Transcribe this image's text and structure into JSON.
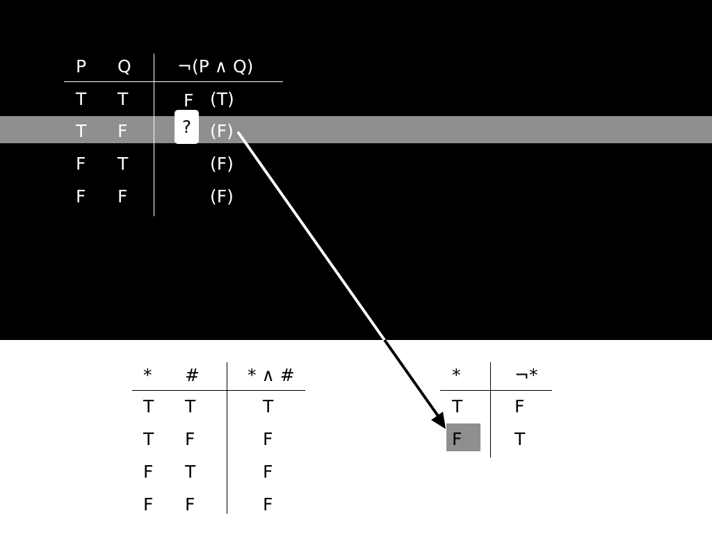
{
  "top_table": {
    "headers": [
      "P",
      "Q",
      "¬(P ∧ Q)"
    ],
    "rows": [
      {
        "p": "T",
        "q": "T",
        "result": "F",
        "annotation": "(T)"
      },
      {
        "p": "T",
        "q": "F",
        "result": "?",
        "annotation": "(F)"
      },
      {
        "p": "F",
        "q": "T",
        "result": "",
        "annotation": "(F)"
      },
      {
        "p": "F",
        "q": "F",
        "result": "",
        "annotation": "(F)"
      }
    ],
    "highlighted_row": 2
  },
  "and_table": {
    "headers": [
      "*",
      "#",
      "* ∧ #"
    ],
    "rows": [
      [
        "T",
        "T",
        "T"
      ],
      [
        "T",
        "F",
        "F"
      ],
      [
        "F",
        "T",
        "F"
      ],
      [
        "F",
        "F",
        "F"
      ]
    ]
  },
  "not_table": {
    "headers": [
      "*",
      "¬*"
    ],
    "rows": [
      [
        "T",
        "F"
      ],
      [
        "F",
        "T"
      ]
    ],
    "highlighted_cell": "row 2, column *"
  },
  "colors": {
    "top_background": "#000000",
    "bottom_background": "#ffffff",
    "highlight_gray": "#8f8f8f"
  }
}
